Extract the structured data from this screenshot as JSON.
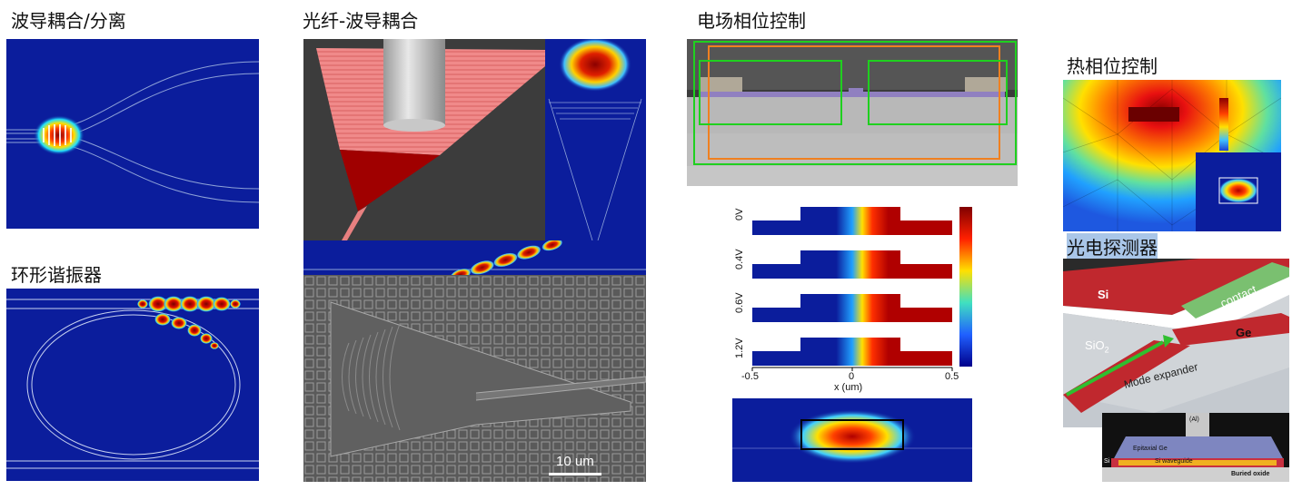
{
  "sections": {
    "coupler": {
      "title": "波导耦合/分离"
    },
    "ring": {
      "title": "环形谐振器"
    },
    "fiber": {
      "title": "光纤-波导耦合",
      "scalebar": "10 um"
    },
    "efield": {
      "title": "电场相位控制",
      "voltages": [
        "0V",
        "0.4V",
        "0.6V",
        "1.2V"
      ],
      "x_ticks": [
        "-0.5",
        "0",
        "0.5"
      ],
      "x_label": "x (um)"
    },
    "thermal": {
      "title": "热相位控制"
    },
    "detector": {
      "title": "光电探测器",
      "labels": {
        "si": "Si",
        "contact": "contact",
        "ge": "Ge",
        "sio2": "SiO",
        "sio2_sub": "2",
        "mode_expander": "Mode expander",
        "al": "(Al)",
        "epi_ge": "Epitaxial Ge",
        "si_small": "Si",
        "si_wg": "Si waveguide",
        "buried": "Buried oxide"
      }
    }
  },
  "colors": {
    "field_bg": "#0b1d9c",
    "field_red": "#b00000",
    "fiber_cone": "#f08080",
    "gds_bg": "#5a5a5a",
    "green_arrow": "#2fbf2f"
  }
}
